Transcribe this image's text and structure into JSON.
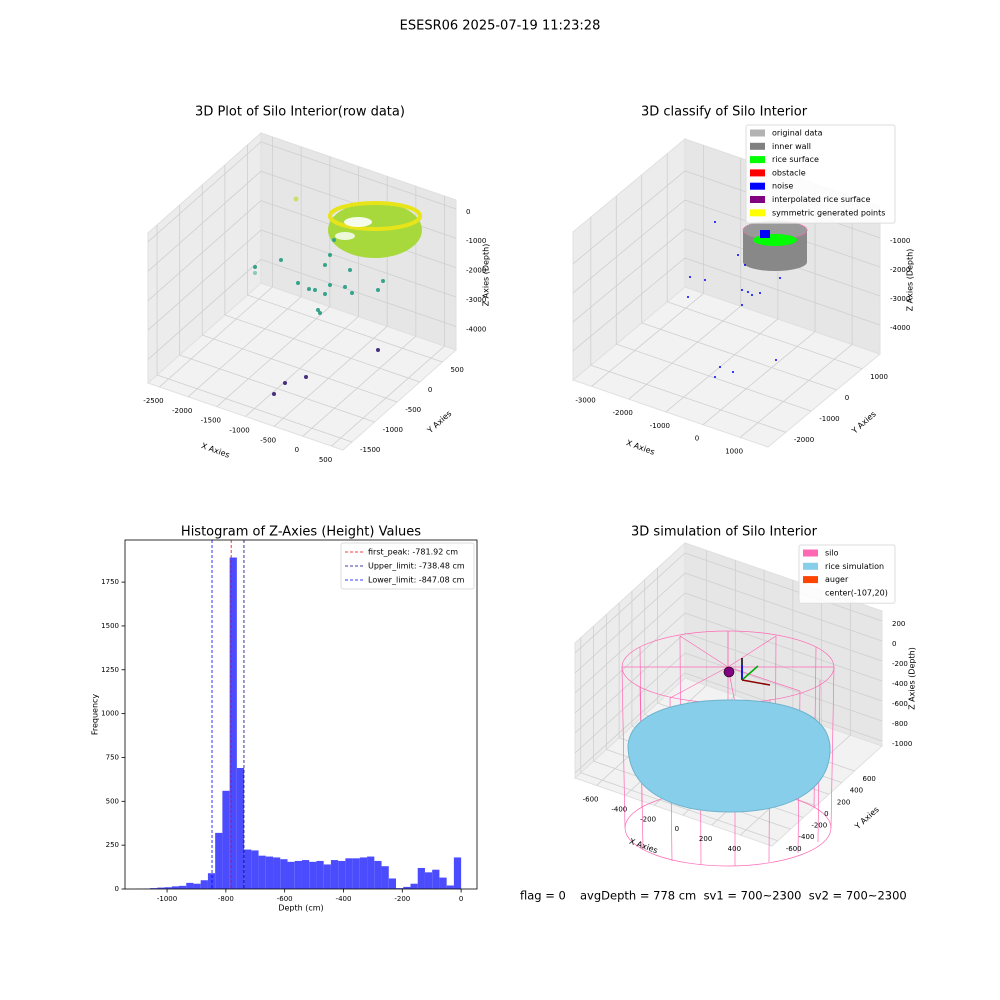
{
  "title": "ESESR06 2025-07-19 11:23:28",
  "chart_data": [
    {
      "type": "scatter3d",
      "title": "3D Plot of Silo Interior(row data)",
      "xlabel": "X Axies",
      "ylabel": "Y Axies",
      "zlabel": "Z Axies (Depth)",
      "xlim": [
        -2700,
        700
      ],
      "ylim": [
        -1700,
        800
      ],
      "zlim": [
        -4800,
        300
      ],
      "xticks": [
        -2500,
        -2000,
        -1500,
        -1000,
        -500,
        0,
        500
      ],
      "yticks": [
        500,
        0,
        -500,
        -1000,
        -1500
      ],
      "zticks": [
        0,
        -1000,
        -2000,
        -3000,
        -4000
      ],
      "grid": true
    },
    {
      "type": "scatter3d",
      "title": "3D classify of Silo Interior",
      "xlabel": "X Axies",
      "ylabel": "Y Axies",
      "zlabel": "Z Axies (Depth)",
      "xlim": [
        -3500,
        1750
      ],
      "ylim": [
        -2700,
        1700
      ],
      "zlim": [
        -5000,
        100
      ],
      "xticks": [
        -3000,
        -2000,
        -1000,
        0,
        1000
      ],
      "yticks": [
        1000,
        0,
        -1000,
        -2000
      ],
      "zticks": [
        -1000,
        -2000,
        -3000,
        -4000
      ],
      "grid": true,
      "legend_loc": "upper right",
      "legend": [
        {
          "name": "original data",
          "color": "#b3b3b3"
        },
        {
          "name": "inner wall",
          "color": "#808080"
        },
        {
          "name": "rice surface",
          "color": "#00ff00"
        },
        {
          "name": "obstacle",
          "color": "#ff0000"
        },
        {
          "name": "noise",
          "color": "#0000ff"
        },
        {
          "name": "interpolated rice surface",
          "color": "#800080"
        },
        {
          "name": "symmetric generated points",
          "color": "#ffff00"
        }
      ]
    },
    {
      "type": "histogram",
      "title": "Histogram of Z-Axies (Height) Values",
      "xlabel": "Depth (cm)",
      "ylabel": "Frequency",
      "color": "#4c4cff",
      "xlim": [
        -1143,
        54
      ],
      "ylim": [
        0,
        1990
      ],
      "xticks": [
        -1000,
        -800,
        -600,
        -400,
        -200,
        0
      ],
      "yticks": [
        0,
        250,
        500,
        750,
        1000,
        1250,
        1500,
        1750
      ],
      "bins": [
        -1107,
        -1082.4,
        -1057.8,
        -1033.2,
        -1008.6,
        -984,
        -959.4,
        -934.8,
        -910.2,
        -885.6,
        -861,
        -836.4,
        -811.8,
        -787.2,
        -762.6,
        -738,
        -713.4,
        -688.8,
        -664.2,
        -639.6,
        -615,
        -590.4,
        -565.8,
        -541.2,
        -516.6,
        -492,
        -467.4,
        -442.8,
        -418.2,
        -393.6,
        -369,
        -344.4,
        -319.8,
        -295.2,
        -270.6,
        -246,
        -221.4,
        -196.8,
        -172.2,
        -147.6,
        -123,
        -98.4,
        -73.8,
        -49.2,
        -24.6,
        0
      ],
      "counts": [
        1,
        2,
        5,
        8,
        10,
        15,
        18,
        35,
        30,
        50,
        90,
        320,
        560,
        1890,
        690,
        225,
        220,
        190,
        185,
        180,
        170,
        155,
        160,
        165,
        155,
        160,
        140,
        165,
        160,
        175,
        175,
        180,
        185,
        160,
        130,
        60,
        5,
        12,
        30,
        120,
        95,
        110,
        65,
        20,
        180
      ],
      "legend_loc": "upper right",
      "vlines": [
        {
          "label": "first_peak: -781.92 cm",
          "value": -781.92,
          "color": "#ff0000"
        },
        {
          "label": "Upper_limit: -738.48 cm",
          "value": -738.48,
          "color": "#00008b"
        },
        {
          "label": "Lower_limit: -847.08 cm",
          "value": -847.08,
          "color": "#0000ff"
        }
      ]
    },
    {
      "type": "scatter3d",
      "title": "3D simulation of Silo Interior",
      "xlabel": "X Axies",
      "ylabel": "Y Axies",
      "zlabel": "Z Axies (Depth)",
      "xlim": [
        -750,
        620
      ],
      "ylim": [
        -690,
        1030
      ],
      "zlim": [
        -1050,
        300
      ],
      "xticks": [
        -600,
        -400,
        -200,
        0,
        200,
        400
      ],
      "yticks": [
        600,
        400,
        200,
        0,
        -200,
        -400,
        -600
      ],
      "zticks": [
        200,
        0,
        -200,
        -400,
        -600,
        -800,
        -1000
      ],
      "grid": true,
      "legend_loc": "upper right",
      "legend": [
        {
          "name": "silo",
          "color": "#ff69b4"
        },
        {
          "name": "rice simulation",
          "color": "#87ceeb"
        },
        {
          "name": "auger",
          "color": "#ff4500"
        },
        {
          "name": "center(-107,20)"
        }
      ]
    }
  ],
  "footer": {
    "flag": "flag = 0",
    "stats": "avgDepth = 778 cm  sv1 = 700~2300  sv2 = 700~2300"
  }
}
